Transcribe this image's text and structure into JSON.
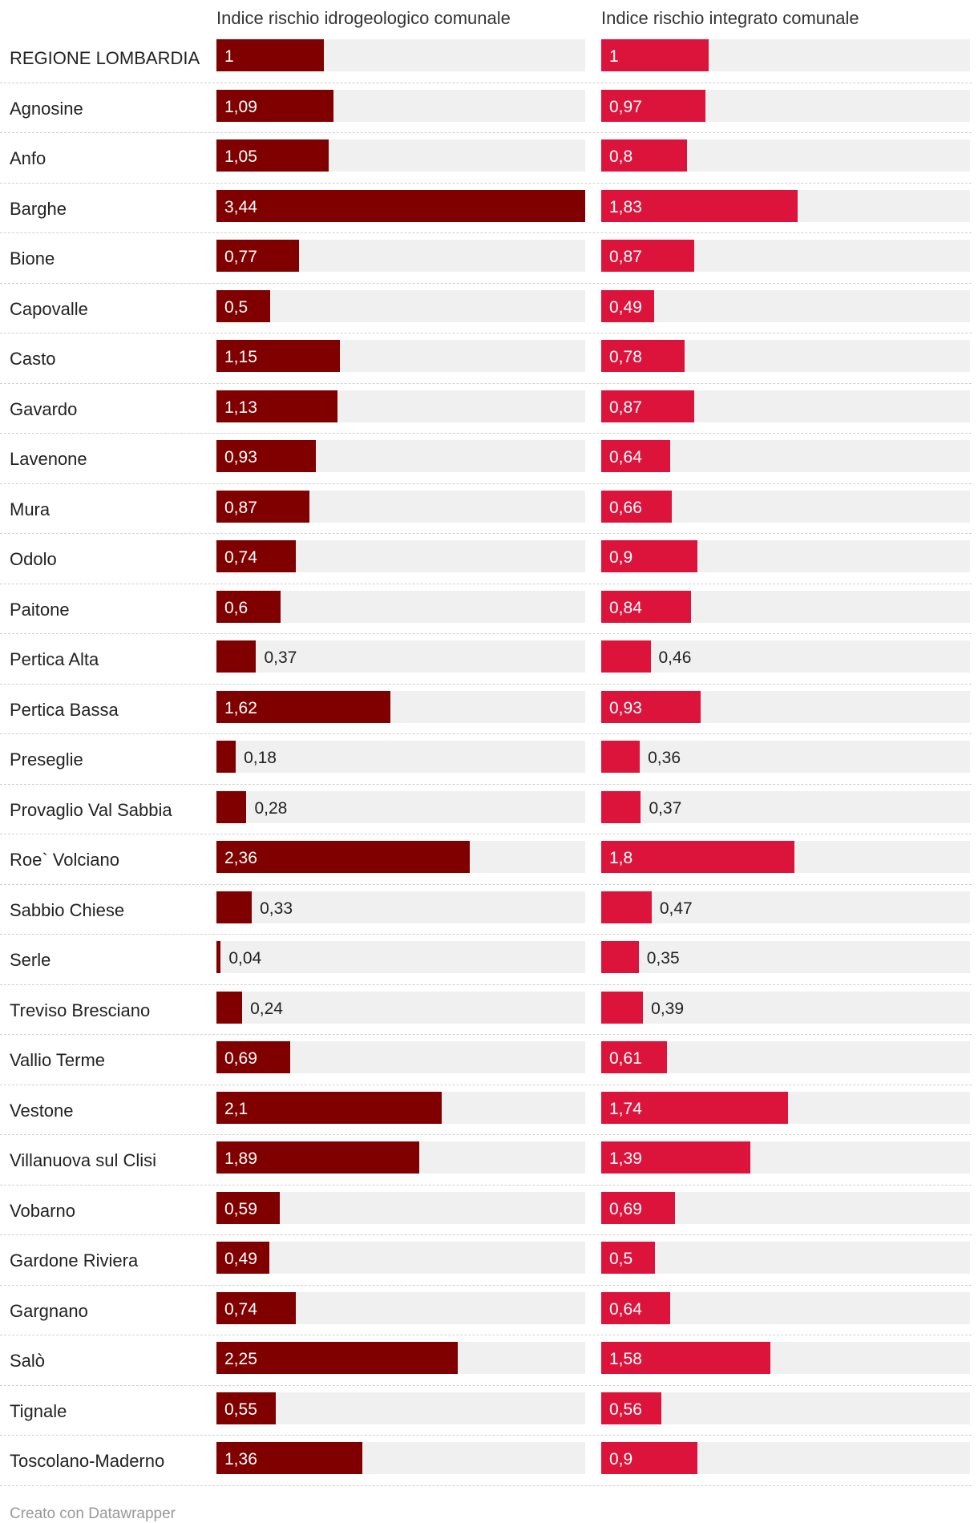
{
  "chart_data": {
    "type": "bar",
    "orientation": "horizontal",
    "series": [
      {
        "name": "Indice rischio idrogeologico comunale",
        "color": "#800000",
        "values": [
          1,
          1.09,
          1.05,
          3.44,
          0.77,
          0.5,
          1.15,
          1.13,
          0.93,
          0.87,
          0.74,
          0.6,
          0.37,
          1.62,
          0.18,
          0.28,
          2.36,
          0.33,
          0.04,
          0.24,
          0.69,
          2.1,
          1.89,
          0.59,
          0.49,
          0.74,
          2.25,
          0.55,
          1.36
        ],
        "labels": [
          "1",
          "1,09",
          "1,05",
          "3,44",
          "0,77",
          "0,5",
          "1,15",
          "1,13",
          "0,93",
          "0,87",
          "0,74",
          "0,6",
          "0,37",
          "1,62",
          "0,18",
          "0,28",
          "2,36",
          "0,33",
          "0,04",
          "0,24",
          "0,69",
          "2,1",
          "1,89",
          "0,59",
          "0,49",
          "0,74",
          "2,25",
          "0,55",
          "1,36"
        ],
        "xlim": [
          0,
          3.44
        ]
      },
      {
        "name": "Indice rischio integrato comunale",
        "color": "#dc143c",
        "values": [
          1,
          0.97,
          0.8,
          1.83,
          0.87,
          0.49,
          0.78,
          0.87,
          0.64,
          0.66,
          0.9,
          0.84,
          0.46,
          0.93,
          0.36,
          0.37,
          1.8,
          0.47,
          0.35,
          0.39,
          0.61,
          1.74,
          1.39,
          0.69,
          0.5,
          0.64,
          1.58,
          0.56,
          0.9
        ],
        "labels": [
          "1",
          "0,97",
          "0,8",
          "1,83",
          "0,87",
          "0,49",
          "0,78",
          "0,87",
          "0,64",
          "0,66",
          "0,9",
          "0,84",
          "0,46",
          "0,93",
          "0,36",
          "0,37",
          "1,8",
          "0,47",
          "0,35",
          "0,39",
          "0,61",
          "1,74",
          "1,39",
          "0,69",
          "0,5",
          "0,64",
          "1,58",
          "0,56",
          "0,9"
        ],
        "xlim": [
          0,
          3.44
        ]
      }
    ],
    "categories": [
      "REGIONE LOMBARDIA",
      "Agnosine",
      "Anfo",
      "Barghe",
      "Bione",
      "Capovalle",
      "Casto",
      "Gavardo",
      "Lavenone",
      "Mura",
      "Odolo",
      "Paitone",
      "Pertica Alta",
      "Pertica Bassa",
      "Preseglie",
      "Provaglio Val Sabbia",
      "Roe` Volciano",
      "Sabbio Chiese",
      "Serle",
      "Treviso Bresciano",
      "Vallio Terme",
      "Vestone",
      "Villanuova sul Clisi",
      "Vobarno",
      "Gardone Riviera",
      "Gargnano",
      "Salò",
      "Tignale",
      "Toscolano-Maderno"
    ],
    "grid": false,
    "legend": "none"
  },
  "footer": {
    "credit": "Creato con Datawrapper"
  }
}
